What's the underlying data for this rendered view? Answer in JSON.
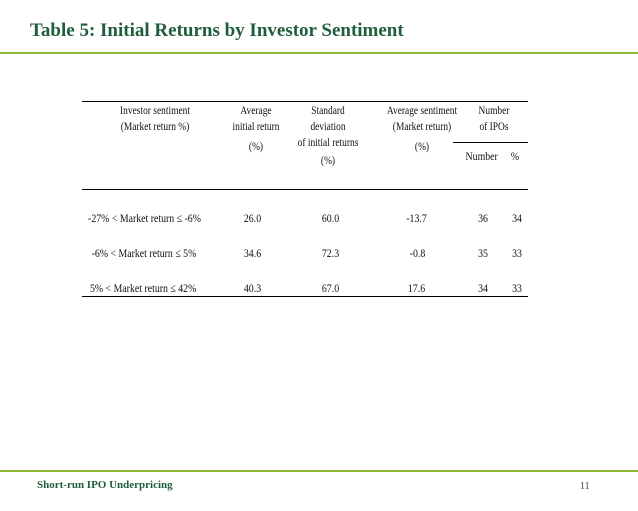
{
  "slide": {
    "title": "Table 5: Initial Returns by Investor Sentiment",
    "footer": "Short-run IPO Underpricing",
    "page_number": "11",
    "accent_color": "#8dba3b",
    "title_color": "#1f5d3c"
  },
  "table": {
    "headers": {
      "sentiment_line1": "Investor sentiment",
      "sentiment_line2": "(Market return %)",
      "avg_line1": "Average",
      "avg_line2": "initial return",
      "avg_line3": "(%)",
      "std_line1": "Standard",
      "std_line2": "deviation",
      "std_line3": "of initial returns",
      "std_line4": "(%)",
      "avgsent_line1": "Average sentiment",
      "avgsent_line2": "(Market return)",
      "avgsent_line3": "(%)",
      "num_line1": "Number",
      "num_line2": "of IPOs",
      "sub_number": "Number",
      "sub_pct": "%"
    },
    "rows": [
      {
        "sentiment": "-27% <  Market return  ≤ -6%",
        "avg_return": "26.0",
        "std_dev": "60.0",
        "avg_sentiment": "-13.7",
        "number": "36",
        "pct": "34"
      },
      {
        "sentiment": "-6% < Market return  ≤  5%",
        "avg_return": "34.6",
        "std_dev": "72.3",
        "avg_sentiment": "-0.8",
        "number": "35",
        "pct": "33"
      },
      {
        "sentiment": "5% < Market return  ≤ 42%",
        "avg_return": "40.3",
        "std_dev": "67.0",
        "avg_sentiment": "17.6",
        "number": "34",
        "pct": "33"
      }
    ]
  }
}
